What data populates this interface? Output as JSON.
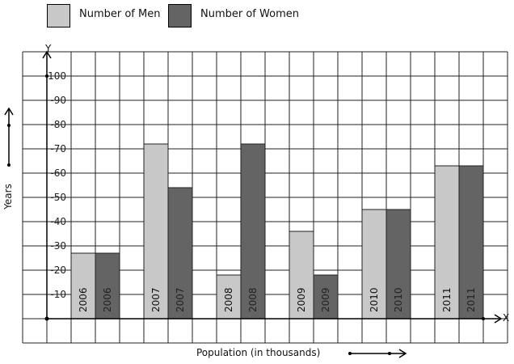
{
  "chart_data": {
    "type": "bar",
    "categories": [
      "2006",
      "2007",
      "2008",
      "2009",
      "2010",
      "2011"
    ],
    "series": [
      {
        "name": "Number of Men",
        "values": [
          27,
          72,
          18,
          36,
          45,
          63
        ],
        "color": "#c8c8c8"
      },
      {
        "name": "Number of Women",
        "values": [
          27,
          54,
          72,
          18,
          45,
          63
        ],
        "color": "#646464"
      }
    ],
    "ylim": [
      0,
      110
    ],
    "yticks": [
      "-10",
      "-20",
      "-30",
      "-40",
      "-50",
      "-60",
      "-70",
      "-80",
      "-90",
      "100"
    ],
    "xlabel": "Population (in thousands)",
    "ylabel": "Years",
    "x_axis_letter": "X",
    "y_axis_letter": "Y",
    "grid": true,
    "legend": "top-left",
    "bar_labels": "category names written vertically inside each bar"
  }
}
